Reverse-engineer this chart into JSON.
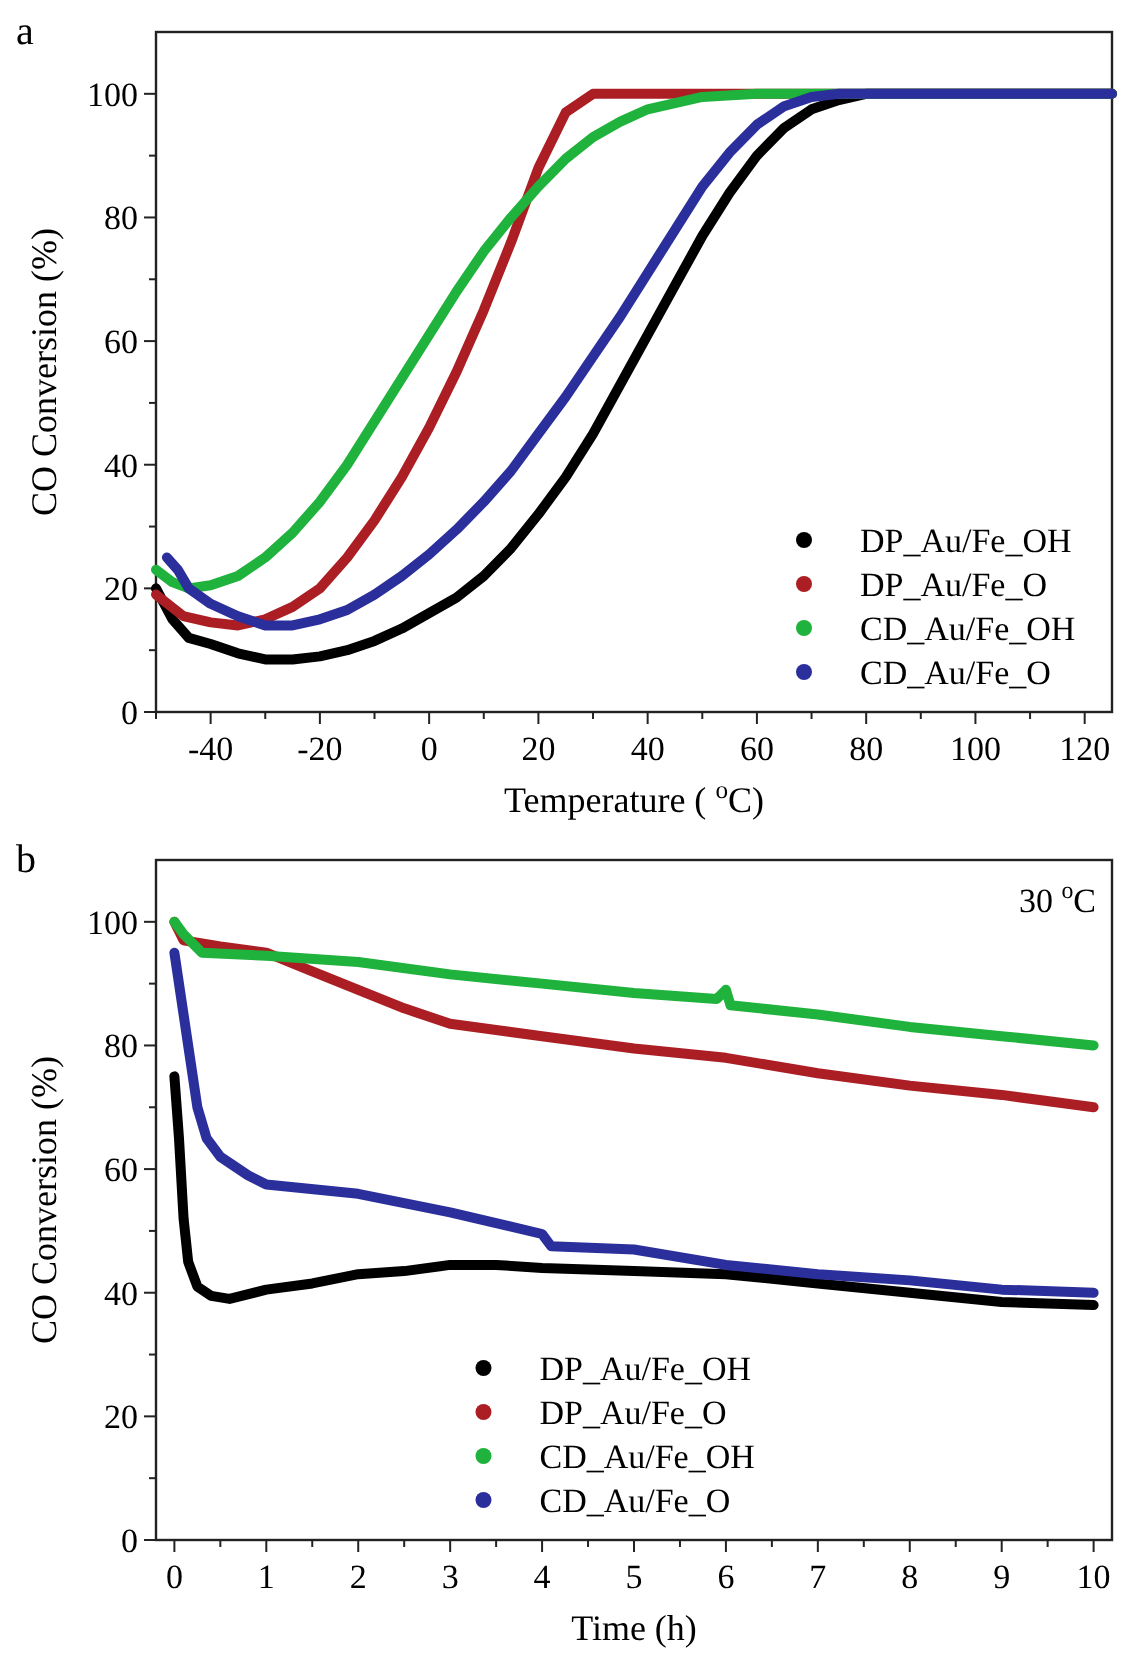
{
  "chart_data": [
    {
      "type": "line",
      "title": "a",
      "xlabel": "Temperature ( $^{o}$C)",
      "ylabel": "CO Conversion (%)",
      "xlim": [
        -50,
        125
      ],
      "ylim": [
        0,
        110
      ],
      "xticks": [
        {
          "value": -50,
          "label": null
        },
        -40,
        {
          "value": -30,
          "label": null
        },
        -20,
        {
          "value": -10,
          "label": null
        },
        0,
        {
          "value": 10,
          "label": null
        },
        20,
        {
          "value": 30,
          "label": null
        },
        40,
        {
          "value": 50,
          "label": null
        },
        60,
        {
          "value": 70,
          "label": null
        },
        80,
        {
          "value": 90,
          "label": null
        },
        100,
        {
          "value": 110,
          "label": null
        },
        120
      ],
      "yticks": [
        0,
        {
          "value": 10,
          "label": null
        },
        20,
        {
          "value": 30,
          "label": null
        },
        40,
        {
          "value": 50,
          "label": null
        },
        60,
        {
          "value": 70,
          "label": null
        },
        80,
        {
          "value": 90,
          "label": null
        },
        100
      ],
      "legend": "bottom right",
      "marker": "none",
      "line_style": "solid",
      "grid": false,
      "series": [
        {
          "name": "DP_Au/Fe_OH",
          "color": "#000000",
          "x": [
            -50,
            -47,
            -44,
            -40,
            -35,
            -30,
            -25,
            -20,
            -15,
            -10,
            -5,
            0,
            5,
            10,
            15,
            20,
            25,
            30,
            35,
            40,
            45,
            50,
            55,
            60,
            65,
            70,
            75,
            80,
            125
          ],
          "values": [
            20,
            15,
            12,
            11,
            9.5,
            8.5,
            8.5,
            9,
            10,
            11.5,
            13.5,
            16,
            18.5,
            22,
            26.5,
            32,
            38,
            45,
            53,
            61,
            69,
            77,
            84,
            90,
            94.5,
            97.5,
            99,
            100,
            100
          ]
        },
        {
          "name": "DP_Au/Fe_O",
          "color": "#ab1f24",
          "x": [
            -50,
            -45,
            -40,
            -35,
            -30,
            -25,
            -20,
            -15,
            -10,
            -5,
            0,
            5,
            10,
            15,
            20,
            25,
            30,
            125
          ],
          "values": [
            19,
            15.5,
            14.5,
            14,
            15,
            17,
            20,
            25,
            31,
            38,
            46,
            55,
            65,
            76,
            88,
            97,
            100,
            100
          ]
        },
        {
          "name": "CD_Au/Fe_OH",
          "color": "#1fb23c",
          "x": [
            -50,
            -47,
            -44,
            -40,
            -35,
            -30,
            -25,
            -20,
            -15,
            -10,
            -5,
            0,
            5,
            10,
            15,
            20,
            25,
            30,
            35,
            40,
            45,
            50,
            60,
            125
          ],
          "values": [
            23,
            21,
            20,
            20.5,
            22,
            25,
            29,
            34,
            40,
            47,
            54,
            61,
            68,
            74.5,
            80,
            85,
            89.5,
            93,
            95.5,
            97.5,
            98.5,
            99.5,
            100,
            100
          ]
        },
        {
          "name": "CD_Au/Fe_O",
          "color": "#2b2f9b",
          "x": [
            -48,
            -46,
            -44,
            -40,
            -35,
            -30,
            -25,
            -20,
            -15,
            -10,
            -5,
            0,
            5,
            10,
            15,
            20,
            25,
            30,
            35,
            40,
            45,
            50,
            55,
            60,
            65,
            70,
            75,
            125
          ],
          "values": [
            25,
            23,
            20,
            17.5,
            15.5,
            14,
            14,
            15,
            16.5,
            19,
            22,
            25.5,
            29.5,
            34,
            39,
            45,
            51,
            57.5,
            64,
            71,
            78,
            85,
            90.5,
            95,
            98,
            99.5,
            100,
            100
          ]
        }
      ]
    },
    {
      "type": "line",
      "title": "b",
      "xlabel": "Time (h)",
      "ylabel": "CO Conversion (%)",
      "xlim": [
        -0.2,
        10.2
      ],
      "ylim": [
        0,
        110
      ],
      "xticks": [
        0,
        {
          "value": 0.5,
          "label": null
        },
        1,
        {
          "value": 1.5,
          "label": null
        },
        2,
        {
          "value": 2.5,
          "label": null
        },
        3,
        {
          "value": 3.5,
          "label": null
        },
        4,
        {
          "value": 4.5,
          "label": null
        },
        5,
        {
          "value": 5.5,
          "label": null
        },
        6,
        {
          "value": 6.5,
          "label": null
        },
        7,
        {
          "value": 7.5,
          "label": null
        },
        8,
        {
          "value": 8.5,
          "label": null
        },
        9,
        {
          "value": 9.5,
          "label": null
        },
        10
      ],
      "yticks": [
        0,
        {
          "value": 10,
          "label": null
        },
        20,
        {
          "value": 30,
          "label": null
        },
        40,
        {
          "value": 50,
          "label": null
        },
        60,
        {
          "value": 70,
          "label": null
        },
        80,
        {
          "value": 90,
          "label": null
        },
        100
      ],
      "annotations": [
        "30 $^{o}$C"
      ],
      "legend": "bottom",
      "marker": "none",
      "line_style": "solid",
      "grid": false,
      "series": [
        {
          "name": "DP_Au/Fe_OH",
          "color": "#000000",
          "x": [
            0,
            0.05,
            0.1,
            0.15,
            0.25,
            0.4,
            0.6,
            1,
            1.5,
            2,
            2.5,
            3,
            3.5,
            4,
            5,
            6,
            7,
            8,
            9,
            10
          ],
          "values": [
            75,
            65,
            52,
            45,
            41,
            39.5,
            39,
            40.5,
            41.5,
            43,
            43.5,
            44.5,
            44.5,
            44,
            43.5,
            43,
            41.5,
            40,
            38.5,
            38
          ]
        },
        {
          "name": "DP_Au/Fe_O",
          "color": "#ab1f24",
          "x": [
            0,
            0.1,
            0.5,
            1,
            1.5,
            2,
            2.5,
            3,
            3.5,
            4,
            5,
            6,
            7,
            8,
            9,
            10
          ],
          "values": [
            100,
            97,
            96,
            95,
            92,
            89,
            86,
            83.5,
            82.5,
            81.5,
            79.5,
            78,
            75.5,
            73.5,
            72,
            70
          ]
        },
        {
          "name": "CD_Au/Fe_OH",
          "color": "#1fb23c",
          "x": [
            0,
            0.1,
            0.3,
            1,
            2,
            3,
            4,
            5,
            5.9,
            6,
            6.05,
            7,
            8,
            9,
            10
          ],
          "values": [
            100,
            98,
            95,
            94.5,
            93.5,
            91.5,
            90,
            88.5,
            87.5,
            89,
            86.5,
            85,
            83,
            81.5,
            80
          ]
        },
        {
          "name": "CD_Au/Fe_O",
          "color": "#2b2f9b",
          "x": [
            0,
            0.05,
            0.15,
            0.25,
            0.35,
            0.5,
            0.8,
            1,
            2,
            3,
            4,
            4.1,
            5,
            6,
            7,
            8,
            9,
            10
          ],
          "values": [
            95,
            90,
            80,
            70,
            65,
            62,
            59,
            57.5,
            56,
            53,
            49.5,
            47.5,
            47,
            44.5,
            43,
            42,
            40.5,
            40
          ]
        }
      ]
    }
  ]
}
